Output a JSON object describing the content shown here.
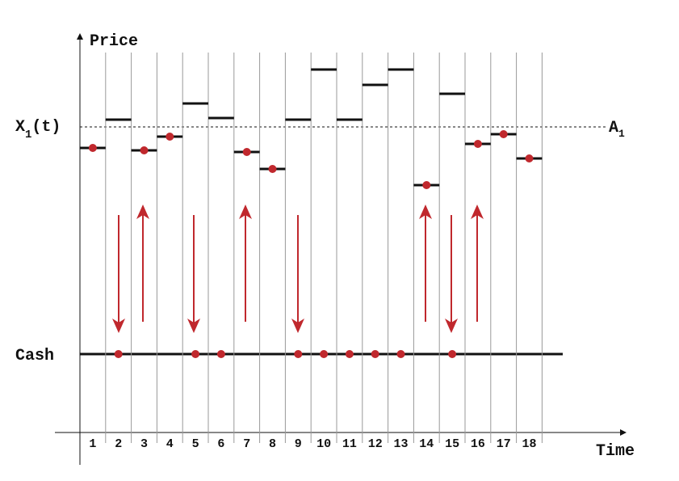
{
  "axis": {
    "y_label": "Price",
    "x_label": "Time"
  },
  "price_label": {
    "name": "X",
    "subscript": "1",
    "suffix": "(t)"
  },
  "threshold_label": {
    "name": "A",
    "subscript": "1"
  },
  "cash_label": "Cash",
  "periods": [
    1,
    2,
    3,
    4,
    5,
    6,
    7,
    8,
    9,
    10,
    11,
    12,
    13,
    14,
    15,
    16,
    17,
    18
  ]
}
